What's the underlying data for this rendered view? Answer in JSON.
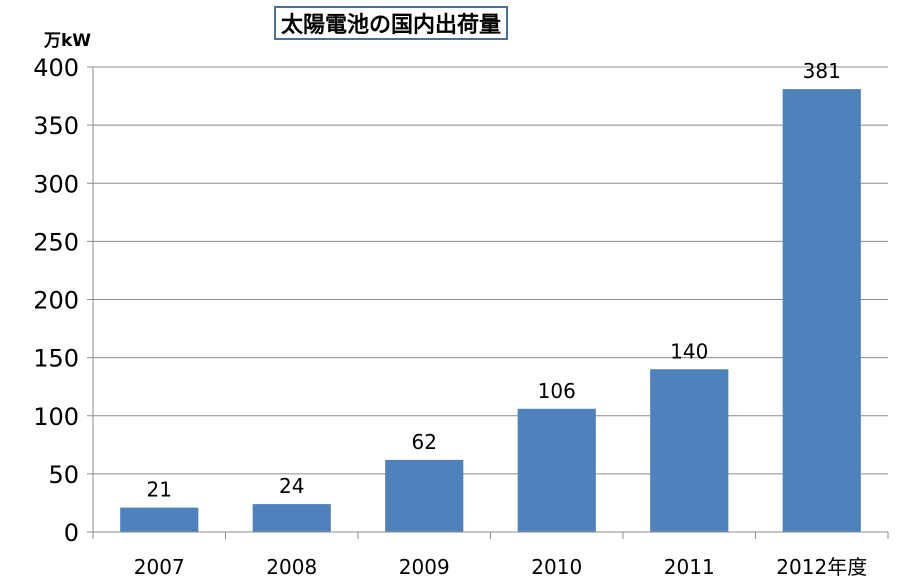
{
  "chart_data": {
    "type": "bar",
    "title": "太陽電池の国内出荷量",
    "ylabel": "万kW",
    "xlabel": "",
    "categories": [
      "2007",
      "2008",
      "2009",
      "2010",
      "2011",
      "2012年度"
    ],
    "values": [
      21,
      24,
      62,
      106,
      140,
      381
    ],
    "ylim": [
      0,
      400
    ],
    "yticks": [
      0,
      50,
      100,
      150,
      200,
      250,
      300,
      350,
      400
    ],
    "grid": true,
    "legend": "none",
    "data_labels": true,
    "bar_color": "#4f81bd"
  }
}
